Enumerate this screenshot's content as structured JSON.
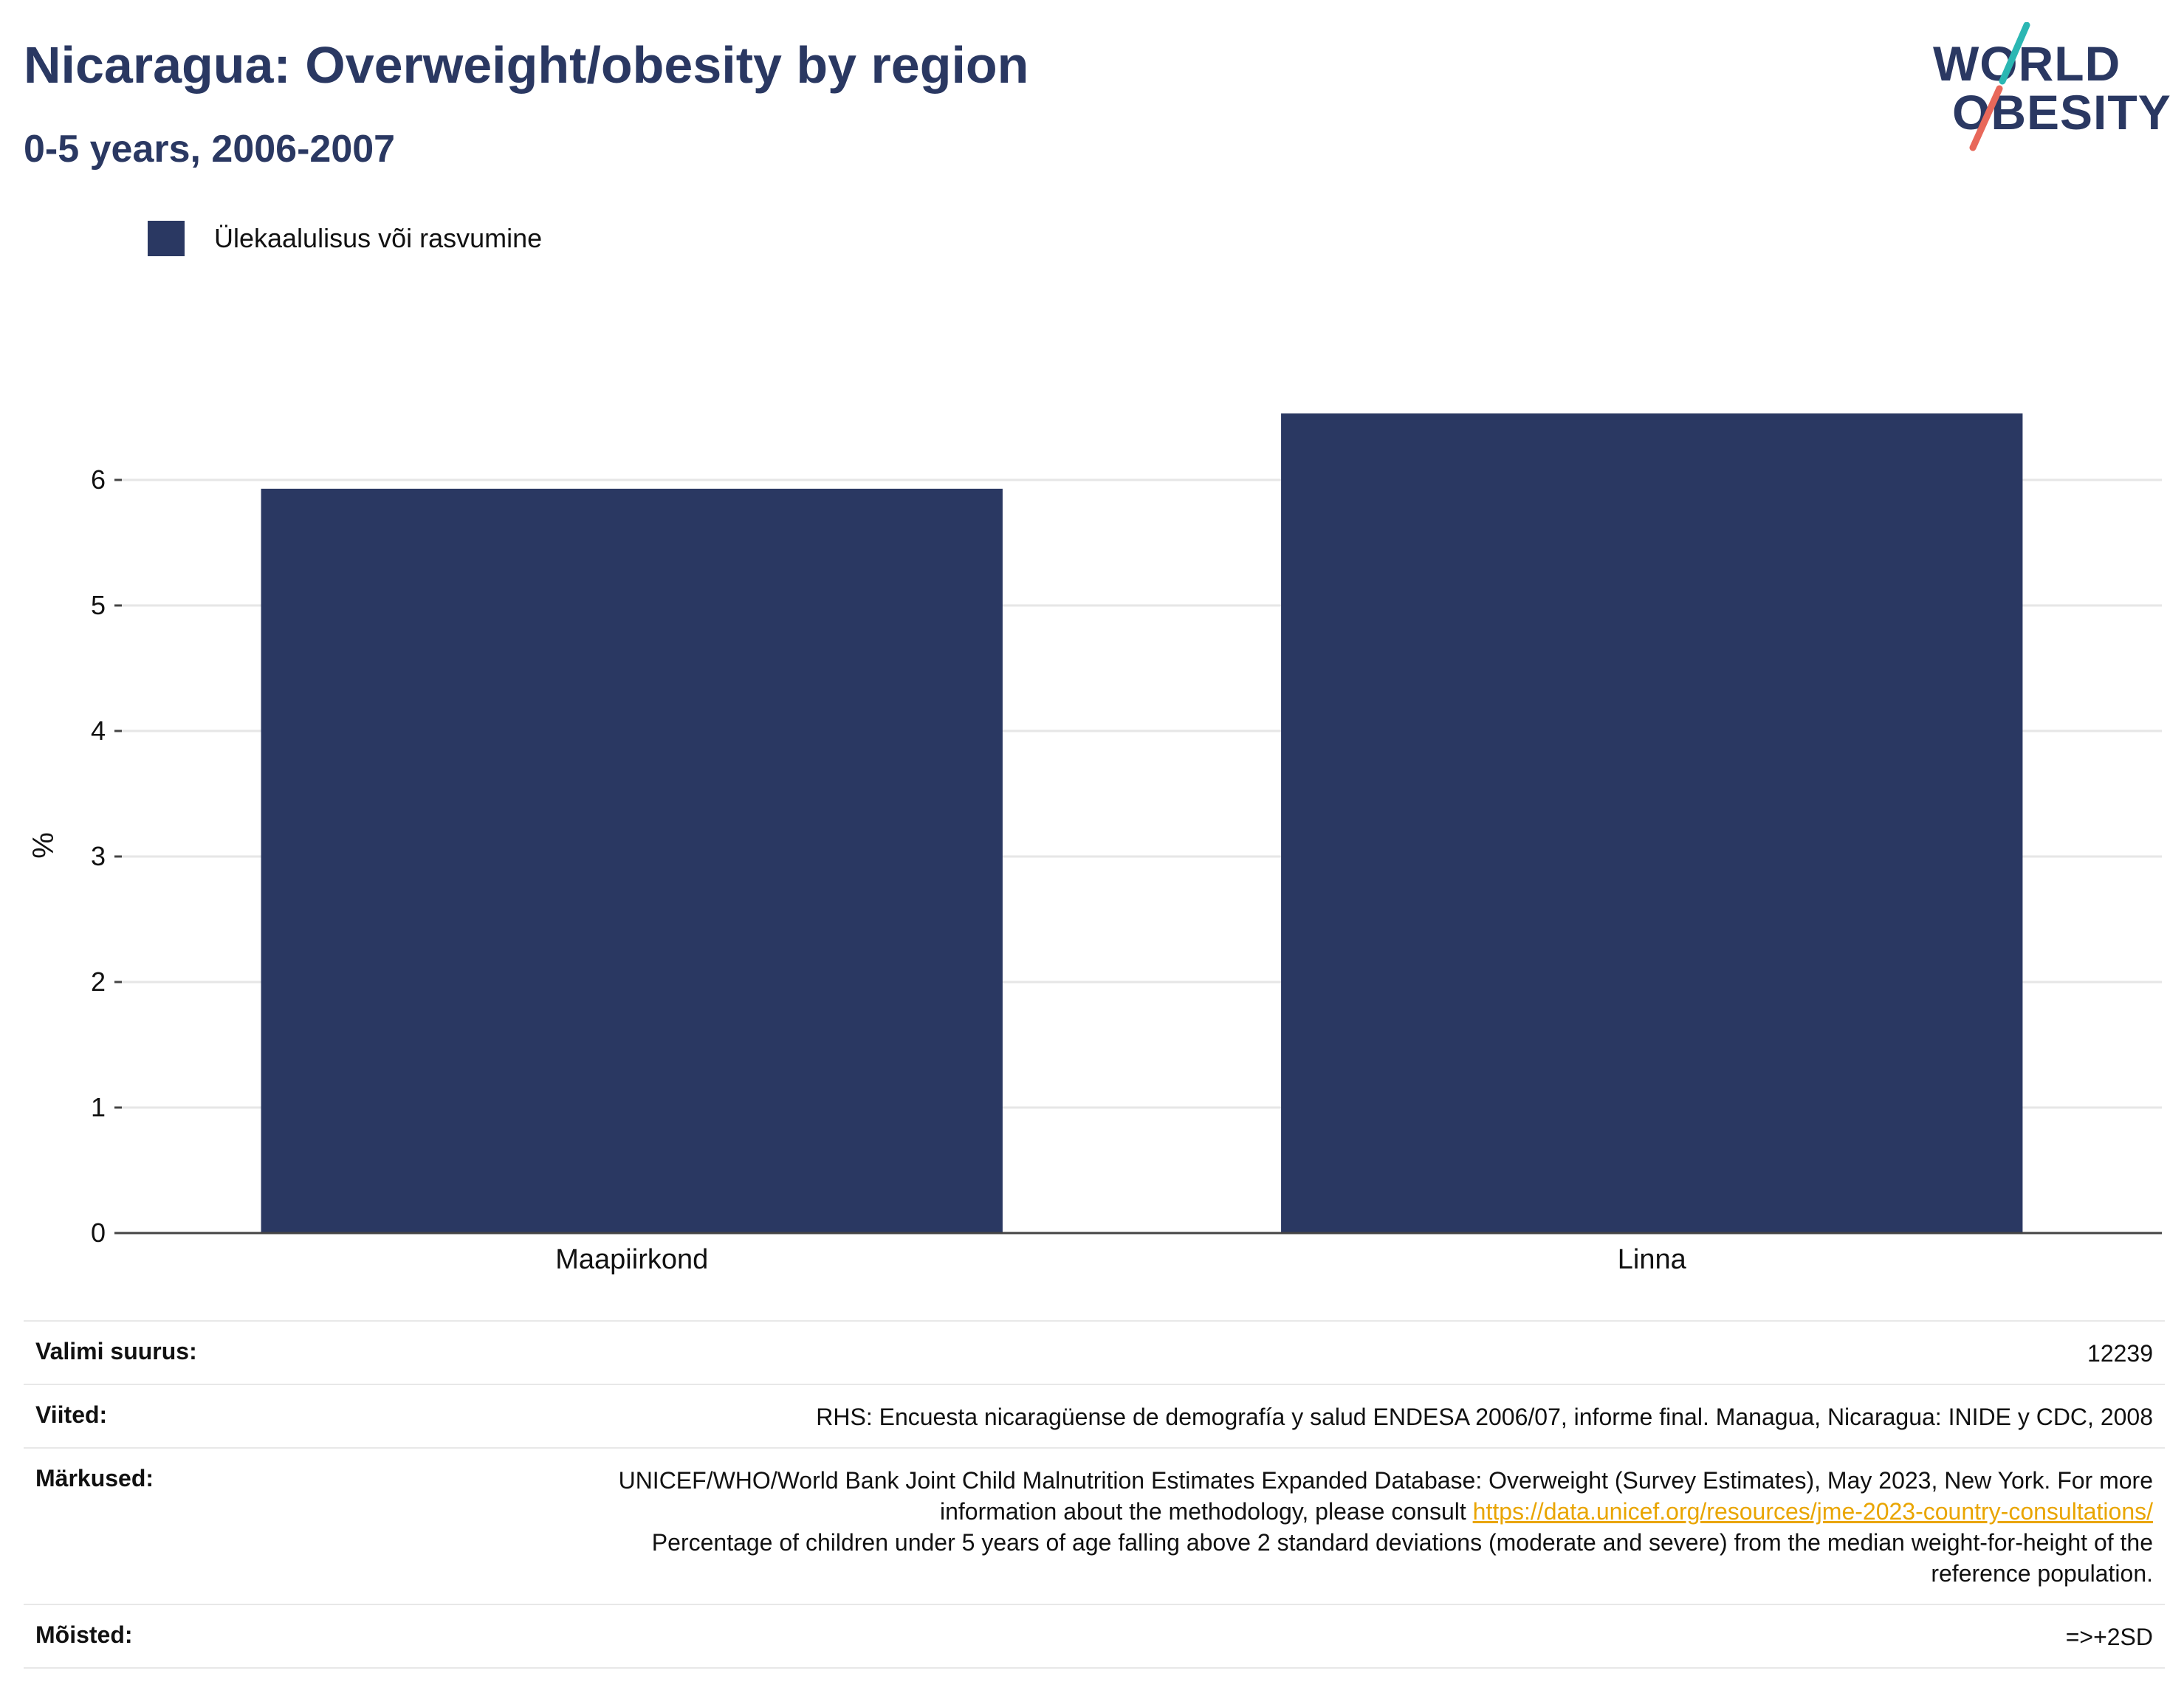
{
  "title": "Nicaragua: Overweight/obesity by region",
  "subtitle": "0-5 years, 2006-2007",
  "logo": {
    "line1": "WORLD",
    "line2": "OBESITY"
  },
  "colors": {
    "bar": "#2a3862",
    "title": "#2a3862",
    "logo_slash_top": "#2bb7b3",
    "logo_slash_bottom": "#e8685a",
    "link": "#e9a500"
  },
  "chart_data": {
    "type": "bar",
    "categories": [
      "Maapiirkond",
      "Linna"
    ],
    "series": [
      {
        "name": "Ülekaalulisus või rasvumine",
        "values": [
          5.93,
          6.53
        ]
      }
    ],
    "ylabel": "%",
    "ylim": [
      0,
      7
    ],
    "yticks": [
      0,
      1,
      2,
      3,
      4,
      5,
      6
    ],
    "grid": true,
    "legend": "top-left"
  },
  "footer": {
    "sample_label": "Valimi suurus:",
    "sample_value": "12239",
    "refs_label": "Viited:",
    "refs_value": "RHS: Encuesta nicaragüense de demografía y salud ENDESA 2006/07, informe final. Managua, Nicaragua: INIDE y CDC, 2008",
    "notes_label": "Märkused:",
    "notes_text1": "UNICEF/WHO/World Bank Joint Child Malnutrition Estimates Expanded Database: Overweight (Survey Estimates), May 2023, New York. For more information about the methodology, please consult ",
    "notes_link": "https://data.unicef.org/resources/jme-2023-country-consultations/",
    "notes_text2": "Percentage of children under 5 years of age falling above 2 standard deviations (moderate and severe) from the median weight-for-height of the reference population.",
    "defs_label": "Mõisted:",
    "defs_value": "=>+2SD"
  }
}
